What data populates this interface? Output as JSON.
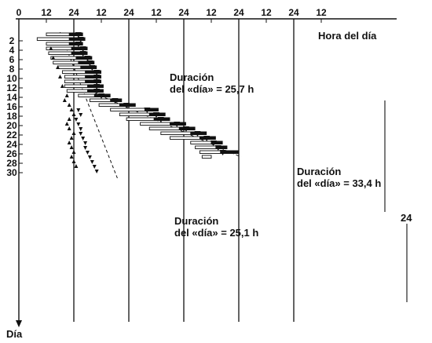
{
  "chart_data": {
    "type": "actogram",
    "x_ticks": [
      "0",
      "12",
      "24",
      "12",
      "24",
      "12",
      "24",
      "12",
      "24",
      "12",
      "24",
      "12"
    ],
    "x_label": "Hora del día",
    "y_label": "Día",
    "y_ticks": [
      "2",
      "4",
      "6",
      "8",
      "10",
      "12",
      "14",
      "16",
      "18",
      "20",
      "22",
      "24",
      "26",
      "28",
      "30"
    ],
    "annotations": [
      {
        "lines": [
          "Duración",
          "del «día» = 25,7 h"
        ]
      },
      {
        "lines": [
          "Duración",
          "del «día» = 33,4 h"
        ]
      },
      {
        "lines": [
          "Duración",
          "del «día» = 25,1 h"
        ]
      },
      {
        "lines": [
          "24"
        ]
      }
    ],
    "activity_bars": [
      {
        "day": 1,
        "rest_start": 12,
        "rest_end": 22,
        "active_end": 28,
        "marker": 26
      },
      {
        "day": 2,
        "rest_start": 8,
        "rest_end": 22,
        "active_end": 29,
        "marker": 27
      },
      {
        "day": 3,
        "rest_start": 12,
        "rest_end": 22,
        "active_end": 28,
        "marker": 26
      },
      {
        "day": 4,
        "rest_start": 12,
        "rest_end": 23,
        "active_end": 30,
        "marker": 28
      },
      {
        "day": 5,
        "rest_start": 13,
        "rest_end": 23,
        "active_end": 30,
        "marker": 28
      },
      {
        "day": 6,
        "rest_start": 14,
        "rest_end": 25,
        "active_end": 32,
        "marker": 30
      },
      {
        "day": 7,
        "rest_start": 15,
        "rest_end": 26,
        "active_end": 33,
        "marker": 31
      },
      {
        "day": 8,
        "rest_start": 17,
        "rest_end": 27,
        "active_end": 34,
        "marker": 32
      },
      {
        "day": 9,
        "rest_start": 19,
        "rest_end": 29,
        "active_end": 36,
        "marker": 34
      },
      {
        "day": 10,
        "rest_start": 20,
        "rest_end": 29,
        "active_end": 36,
        "marker": 34
      },
      {
        "day": 11,
        "rest_start": 20,
        "rest_end": 29,
        "active_end": 36,
        "marker": 34
      },
      {
        "day": 12,
        "rest_start": 20,
        "rest_end": 30,
        "active_end": 37,
        "marker": 34
      },
      {
        "day": 13,
        "rest_start": 21,
        "rest_end": 30,
        "active_end": 37,
        "marker": 34
      },
      {
        "day": 14,
        "rest_start": 26,
        "rest_end": 33,
        "active_end": 40,
        "marker": 36
      },
      {
        "day": 15,
        "rest_start": 31,
        "rest_end": 40,
        "active_end": 45,
        "marker": 42
      },
      {
        "day": 16,
        "rest_start": 35,
        "rest_end": 44,
        "active_end": 51,
        "marker": 47
      },
      {
        "day": 17,
        "rest_start": 40,
        "rest_end": 55,
        "active_end": 61,
        "marker": 56
      },
      {
        "day": 18,
        "rest_start": 44,
        "rest_end": 57,
        "active_end": 64,
        "marker": 60
      },
      {
        "day": 19,
        "rest_start": 47,
        "rest_end": 59,
        "active_end": 66,
        "marker": 62
      },
      {
        "day": 20,
        "rest_start": 53,
        "rest_end": 66,
        "active_end": 73,
        "marker": 69
      },
      {
        "day": 21,
        "rest_start": 57,
        "rest_end": 70,
        "active_end": 77,
        "marker": 73
      },
      {
        "day": 22,
        "rest_start": 62,
        "rest_end": 75,
        "active_end": 82,
        "marker": 78
      },
      {
        "day": 23,
        "rest_start": 66,
        "rest_end": 79,
        "active_end": 86,
        "marker": 82
      },
      {
        "day": 24,
        "rest_start": 75,
        "rest_end": 84,
        "active_end": 89,
        "marker": 85
      },
      {
        "day": 25,
        "rest_start": 77,
        "rest_end": 86,
        "active_end": 91,
        "marker": 87
      },
      {
        "day": 26,
        "rest_start": 79,
        "rest_end": 88,
        "active_end": 96,
        "marker": 89
      },
      {
        "day": 27,
        "rest_start": 80,
        "rest_end": 84,
        "active_end": 84,
        "marker": null
      }
    ],
    "free_run_triangles_up": [
      {
        "day": 4,
        "hour": 14
      },
      {
        "day": 6,
        "hour": 15
      },
      {
        "day": 8,
        "hour": 17
      },
      {
        "day": 10,
        "hour": 18
      },
      {
        "day": 12,
        "hour": 19
      },
      {
        "day": 14,
        "hour": 21
      },
      {
        "day": 15,
        "hour": 20
      },
      {
        "day": 16,
        "hour": 22
      },
      {
        "day": 17,
        "hour": 23
      },
      {
        "day": 18,
        "hour": 24
      },
      {
        "day": 19,
        "hour": 22
      },
      {
        "day": 20,
        "hour": 21
      },
      {
        "day": 21,
        "hour": 22
      },
      {
        "day": 22,
        "hour": 24
      },
      {
        "day": 23,
        "hour": 23
      },
      {
        "day": 24,
        "hour": 22
      },
      {
        "day": 25,
        "hour": 23
      },
      {
        "day": 26,
        "hour": 24
      },
      {
        "day": 27,
        "hour": 23
      },
      {
        "day": 28,
        "hour": 24
      },
      {
        "day": 29,
        "hour": 25
      }
    ],
    "free_run_triangles_down": [
      {
        "day": 17,
        "hour": 26
      },
      {
        "day": 18,
        "hour": 27
      },
      {
        "day": 19,
        "hour": 25
      },
      {
        "day": 20,
        "hour": 26
      },
      {
        "day": 21,
        "hour": 27
      },
      {
        "day": 22,
        "hour": 27
      },
      {
        "day": 23,
        "hour": 28
      },
      {
        "day": 24,
        "hour": 29
      },
      {
        "day": 25,
        "hour": 29
      },
      {
        "day": 26,
        "hour": 30
      },
      {
        "day": 27,
        "hour": 31
      },
      {
        "day": 28,
        "hour": 32
      },
      {
        "day": 29,
        "hour": 33
      },
      {
        "day": 30,
        "hour": 34
      }
    ],
    "trend_lines": [
      {
        "from": {
          "day": 0.5,
          "hour": 18
        },
        "to": {
          "day": 31.5,
          "hour": 43
        }
      },
      {
        "from": {
          "day": 13,
          "hour": 31
        },
        "to": {
          "day": 27,
          "hour": 97
        }
      }
    ]
  }
}
